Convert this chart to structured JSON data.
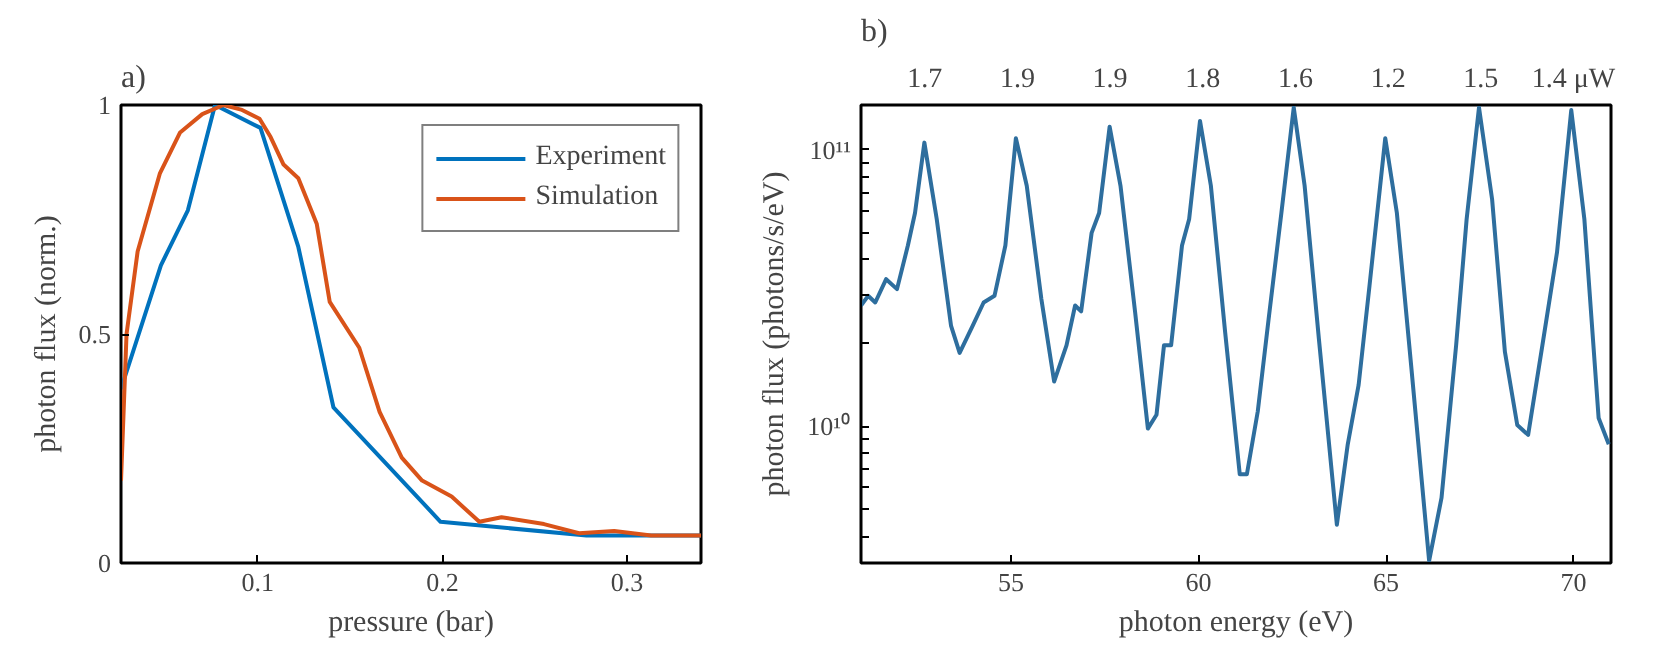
{
  "chart_data": [
    {
      "type": "line",
      "title": "a)",
      "xlabel": "pressure (bar)",
      "ylabel": "photon flux (norm.)",
      "xlim": [
        0.026,
        0.34
      ],
      "ylim": [
        0,
        1
      ],
      "xticks": [
        0.1,
        0.2,
        0.3
      ],
      "yticks": [
        0,
        0.5,
        1
      ],
      "grid": false,
      "legend": "top right",
      "series": [
        {
          "name": "Experiment",
          "color": "#0072bd",
          "x": [
            0.026,
            0.0476,
            0.0622,
            0.0769,
            0.1015,
            0.122,
            0.141,
            0.199,
            0.278,
            0.34
          ],
          "values": [
            0.38,
            0.65,
            0.77,
            1.0,
            0.95,
            0.69,
            0.34,
            0.09,
            0.06,
            0.06
          ]
        },
        {
          "name": "Simulation",
          "color": "#d95319",
          "x": [
            0.026,
            0.029,
            0.035,
            0.047,
            0.058,
            0.07,
            0.0815,
            0.091,
            0.101,
            0.107,
            0.114,
            0.122,
            0.132,
            0.139,
            0.155,
            0.166,
            0.178,
            0.189,
            0.205,
            0.22,
            0.232,
            0.255,
            0.274,
            0.293,
            0.313,
            0.34
          ],
          "values": [
            0.18,
            0.5,
            0.68,
            0.85,
            0.94,
            0.98,
            1.0,
            0.99,
            0.97,
            0.93,
            0.87,
            0.84,
            0.74,
            0.57,
            0.47,
            0.33,
            0.23,
            0.18,
            0.145,
            0.09,
            0.1,
            0.085,
            0.065,
            0.07,
            0.06,
            0.06
          ]
        }
      ]
    },
    {
      "type": "line",
      "title": "b)",
      "xlabel": "photon energy (eV)",
      "ylabel": "photon flux (photons/s/eV)",
      "log": "y",
      "xlim": [
        51,
        71
      ],
      "ylim": [
        3200000000.0,
        145000000000.0
      ],
      "xticks": [
        55,
        60,
        65,
        70
      ],
      "yticks": [
        {
          "value": 4000000000.0,
          "label": null
        },
        {
          "value": 5000000000.0,
          "label": null
        },
        {
          "value": 6000000000.0,
          "label": null
        },
        {
          "value": 7000000000.0,
          "label": null
        },
        {
          "value": 8000000000.0,
          "label": null
        },
        {
          "value": 9000000000.0,
          "label": null
        },
        {
          "value": 10000000000.0,
          "label": "10¹⁰"
        },
        {
          "value": 20000000000.0,
          "label": null
        },
        {
          "value": 30000000000.0,
          "label": null
        },
        {
          "value": 40000000000.0,
          "label": null
        },
        {
          "value": 50000000000.0,
          "label": null
        },
        {
          "value": 60000000000.0,
          "label": null
        },
        {
          "value": 70000000000.0,
          "label": null
        },
        {
          "value": 80000000000.0,
          "label": null
        },
        {
          "value": 90000000000.0,
          "label": null
        },
        {
          "value": 100000000000.0,
          "label": "10¹¹"
        }
      ],
      "annotations": [
        "1.7",
        "1.9",
        "1.9",
        "1.8",
        "1.6",
        "1.2",
        "1.5",
        "1.4 μW"
      ],
      "grid": false,
      "series": [
        {
          "color": "#2e6e9e",
          "x": [
            51.0,
            51.19,
            51.38,
            51.67,
            51.96,
            52.25,
            52.44,
            52.69,
            53.02,
            53.4,
            53.63,
            53.98,
            54.27,
            54.56,
            54.85,
            55.13,
            55.42,
            55.81,
            56.15,
            56.48,
            56.71,
            56.87,
            57.15,
            57.35,
            57.63,
            57.92,
            58.31,
            58.65,
            58.88,
            59.08,
            59.27,
            59.56,
            59.75,
            60.04,
            60.33,
            60.71,
            61.1,
            61.29,
            61.58,
            61.87,
            62.21,
            62.54,
            62.83,
            63.21,
            63.69,
            63.98,
            64.27,
            64.56,
            64.98,
            65.29,
            65.67,
            66.15,
            66.48,
            66.87,
            67.15,
            67.48,
            67.83,
            68.17,
            68.5,
            68.79,
            69.17,
            69.56,
            69.94,
            70.29,
            70.67,
            70.94
          ],
          "values": [
            27300000000.0,
            29600000000.0,
            28000000000.0,
            34000000000.0,
            31300000000.0,
            45000000000.0,
            59000000000.0,
            106000000000.0,
            56000000000.0,
            23100000000.0,
            18400000000.0,
            23100000000.0,
            28000000000.0,
            29600000000.0,
            45000000000.0,
            110000000000.0,
            74000000000.0,
            28800000000.0,
            14500000000.0,
            19600000000.0,
            27300000000.0,
            26000000000.0,
            50000000000.0,
            59000000000.0,
            121000000000.0,
            74000000000.0,
            25800000000.0,
            9800000000.0,
            11000000000.0,
            19600000000.0,
            19600000000.0,
            45000000000.0,
            56000000000.0,
            127000000000.0,
            74000000000.0,
            21900000000.0,
            6700000000.0,
            6700000000.0,
            11300000000.0,
            24400000000.0,
            59000000000.0,
            142000000000.0,
            74000000000.0,
            20700000000.0,
            4400000000.0,
            8600000000.0,
            14100000000.0,
            32200000000.0,
            110000000000.0,
            59000000000.0,
            16600000000.0,
            3260000000.0,
            5500000000.0,
            19600000000.0,
            56000000000.0,
            142000000000.0,
            66000000000.0,
            18600000000.0,
            10100000000.0,
            9300000000.0,
            19600000000.0,
            42500000000.0,
            139000000000.0,
            56000000000.0,
            10700000000.0,
            8600000000.0
          ]
        }
      ]
    }
  ]
}
